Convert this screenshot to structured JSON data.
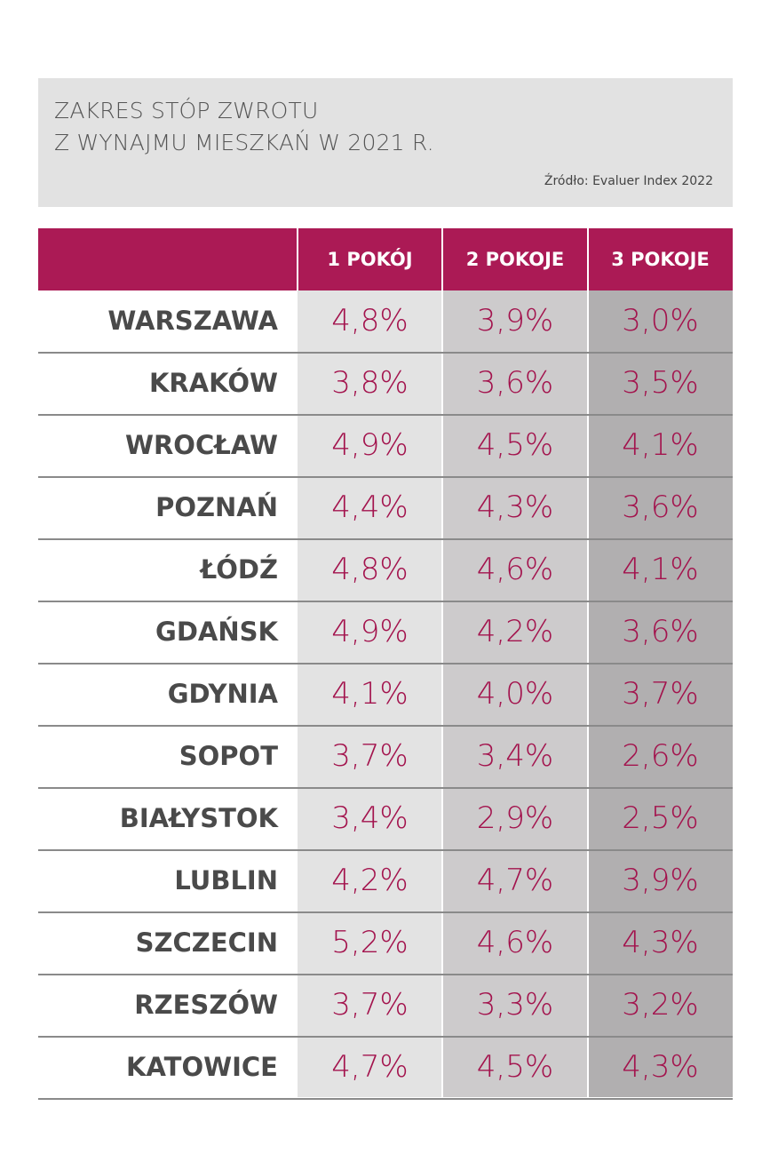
{
  "chart_data": {
    "type": "table",
    "title": [
      "ZAKRES STÓP ZWROTU",
      "Z WYNAJMU MIESZKAŃ W 2021 R."
    ],
    "source": "Źródło: Evaluer Index 2022",
    "columns": [
      "1 POKÓJ",
      "2 POKOJE",
      "3 POKOJE"
    ],
    "rows": [
      {
        "city": "WARSZAWA",
        "values": [
          "4,8%",
          "3,9%",
          "3,0%"
        ]
      },
      {
        "city": "KRAKÓW",
        "values": [
          "3,8%",
          "3,6%",
          "3,5%"
        ]
      },
      {
        "city": "WROCŁAW",
        "values": [
          "4,9%",
          "4,5%",
          "4,1%"
        ]
      },
      {
        "city": "POZNAŃ",
        "values": [
          "4,4%",
          "4,3%",
          "3,6%"
        ]
      },
      {
        "city": "ŁÓDŹ",
        "values": [
          "4,8%",
          "4,6%",
          "4,1%"
        ]
      },
      {
        "city": "GDAŃSK",
        "values": [
          "4,9%",
          "4,2%",
          "3,6%"
        ]
      },
      {
        "city": "GDYNIA",
        "values": [
          "4,1%",
          "4,0%",
          "3,7%"
        ]
      },
      {
        "city": "SOPOT",
        "values": [
          "3,7%",
          "3,4%",
          "2,6%"
        ]
      },
      {
        "city": "BIAŁYSTOK",
        "values": [
          "3,4%",
          "2,9%",
          "2,5%"
        ]
      },
      {
        "city": "LUBLIN",
        "values": [
          "4,2%",
          "4,7%",
          "3,9%"
        ]
      },
      {
        "city": "SZCZECIN",
        "values": [
          "5,2%",
          "4,6%",
          "4,3%"
        ]
      },
      {
        "city": "RZESZÓW",
        "values": [
          "3,7%",
          "3,3%",
          "3,2%"
        ]
      },
      {
        "city": "KATOWICE",
        "values": [
          "4,7%",
          "4,5%",
          "4,3%"
        ]
      }
    ],
    "colors": {
      "header": "#ab1a55",
      "value_text": "#a3134d",
      "city_text": "#4a4a4a",
      "col1_bg": "#e3e3e3",
      "col2_bg": "#cdcbcc",
      "col3_bg": "#b1afb0",
      "title_bg": "#e2e2e2"
    }
  }
}
